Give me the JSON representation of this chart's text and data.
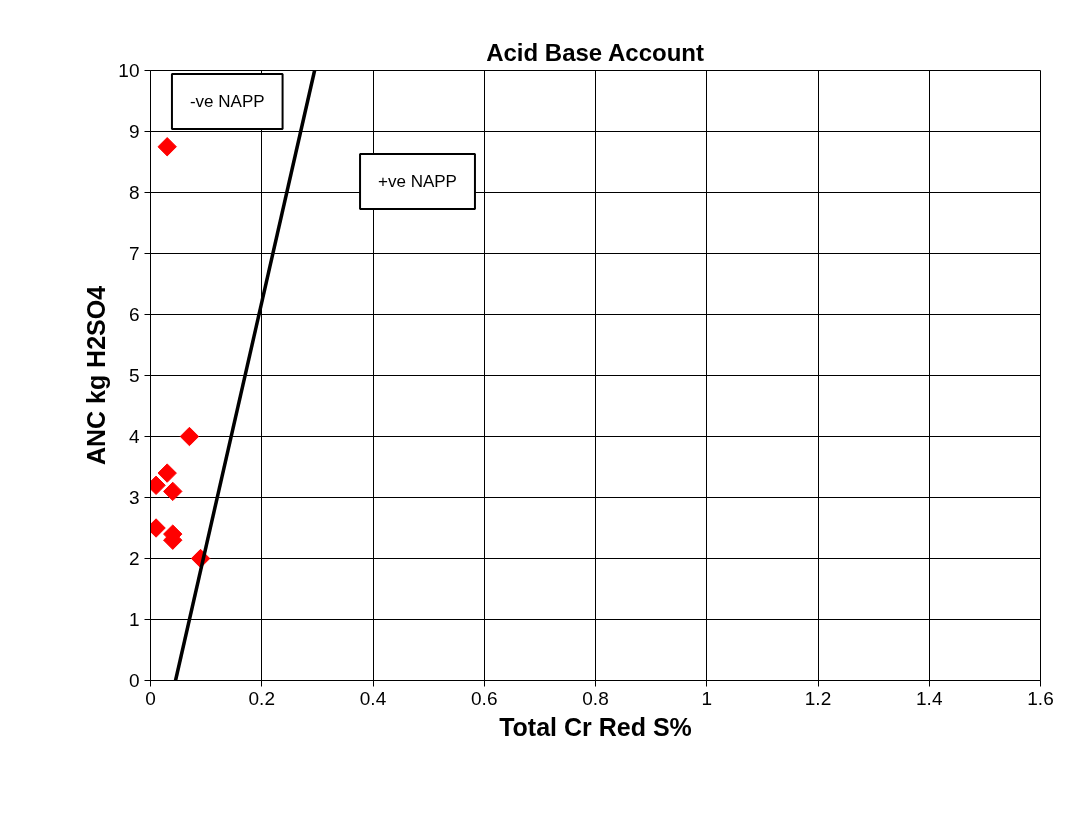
{
  "chart_data": {
    "type": "scatter",
    "title": "Acid Base Account",
    "xlabel": "Total Cr Red S%",
    "ylabel": "ANC kg H2SO4",
    "xlim": [
      0,
      1.6
    ],
    "xticks": [
      0,
      0.2,
      0.4,
      0.6,
      0.8,
      1,
      1.2,
      1.4,
      1.6
    ],
    "ylim": [
      0,
      10
    ],
    "yticks": [
      0,
      1,
      2,
      3,
      4,
      5,
      6,
      7,
      8,
      9,
      10
    ],
    "grid": true,
    "series": [
      {
        "marker": "diamond",
        "color": "#ff0000",
        "x": [
          0.03,
          0.07,
          0.03,
          0.01,
          0.04,
          0.01,
          0.04,
          0.04,
          0.09
        ],
        "values": [
          8.75,
          4.0,
          3.4,
          3.2,
          3.1,
          2.5,
          2.4,
          2.3,
          2.0
        ]
      },
      {
        "type": "line",
        "marker": "none",
        "color": "#000000",
        "x": [
          0.045,
          0.295
        ],
        "values": [
          0,
          10
        ]
      }
    ],
    "annotations": [
      "-ve NAPP",
      "+ve NAPP"
    ]
  }
}
